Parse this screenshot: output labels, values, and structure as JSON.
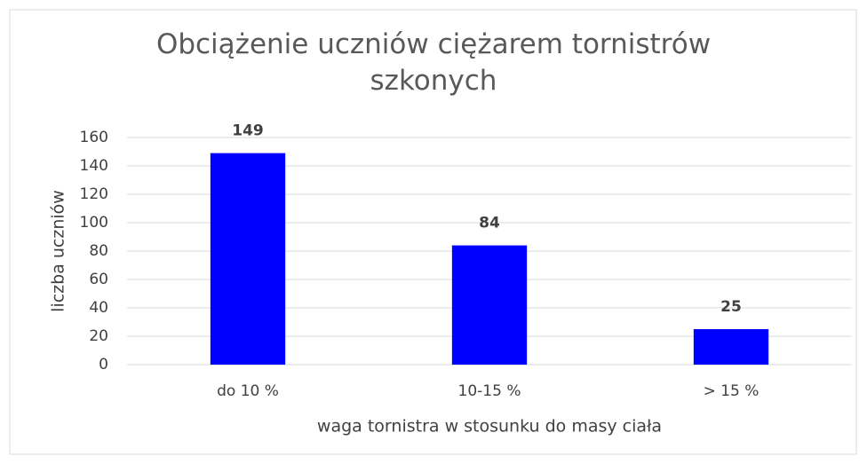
{
  "chart_data": {
    "type": "bar",
    "title": "Obciążenie uczniów ciężarem tornistrów szkonych",
    "x_label": "waga tornistra w stosunku do masy ciała",
    "y_label": "liczba uczniów",
    "categories": [
      "do 10 %",
      "10-15 %",
      "> 15 %"
    ],
    "values": [
      149,
      84,
      25
    ],
    "color": "#0000ff",
    "ylim": [
      0,
      160
    ],
    "yticks": [
      0,
      20,
      40,
      60,
      80,
      100,
      120,
      140,
      160
    ],
    "grid": true
  }
}
